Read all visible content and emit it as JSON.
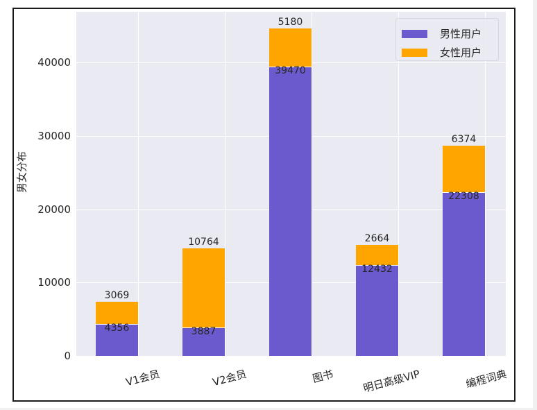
{
  "chart_data": {
    "type": "bar",
    "stacked": true,
    "title": "",
    "xlabel": "",
    "ylabel": "男女分布",
    "ylim": [
      0,
      47000
    ],
    "yticks": [
      "0",
      "10000",
      "20000",
      "30000",
      "40000"
    ],
    "grid": true,
    "legend_position": "upper right",
    "categories": [
      "V1会员",
      "V2会员",
      "图书",
      "明日高级VIP",
      "编程词典"
    ],
    "series": [
      {
        "name": "男性用户",
        "color": "#6a5acd",
        "values": [
          4356,
          3887,
          39470,
          12432,
          22308
        ]
      },
      {
        "name": "女性用户",
        "color": "#ffa500",
        "values": [
          3069,
          10764,
          5180,
          2664,
          6374
        ]
      }
    ],
    "annotations": {
      "male_labels": [
        "4356",
        "3887",
        "39470",
        "12432",
        "22308"
      ],
      "female_labels": [
        "3069",
        "10764",
        "5180",
        "2664",
        "6374"
      ]
    }
  },
  "legend": {
    "items": [
      {
        "label": "男性用户",
        "color": "#6a5acd"
      },
      {
        "label": "女性用户",
        "color": "#ffa500"
      }
    ]
  },
  "axis": {
    "ylabel": "男女分布",
    "yticks": [
      "0",
      "10000",
      "20000",
      "30000",
      "40000"
    ]
  }
}
